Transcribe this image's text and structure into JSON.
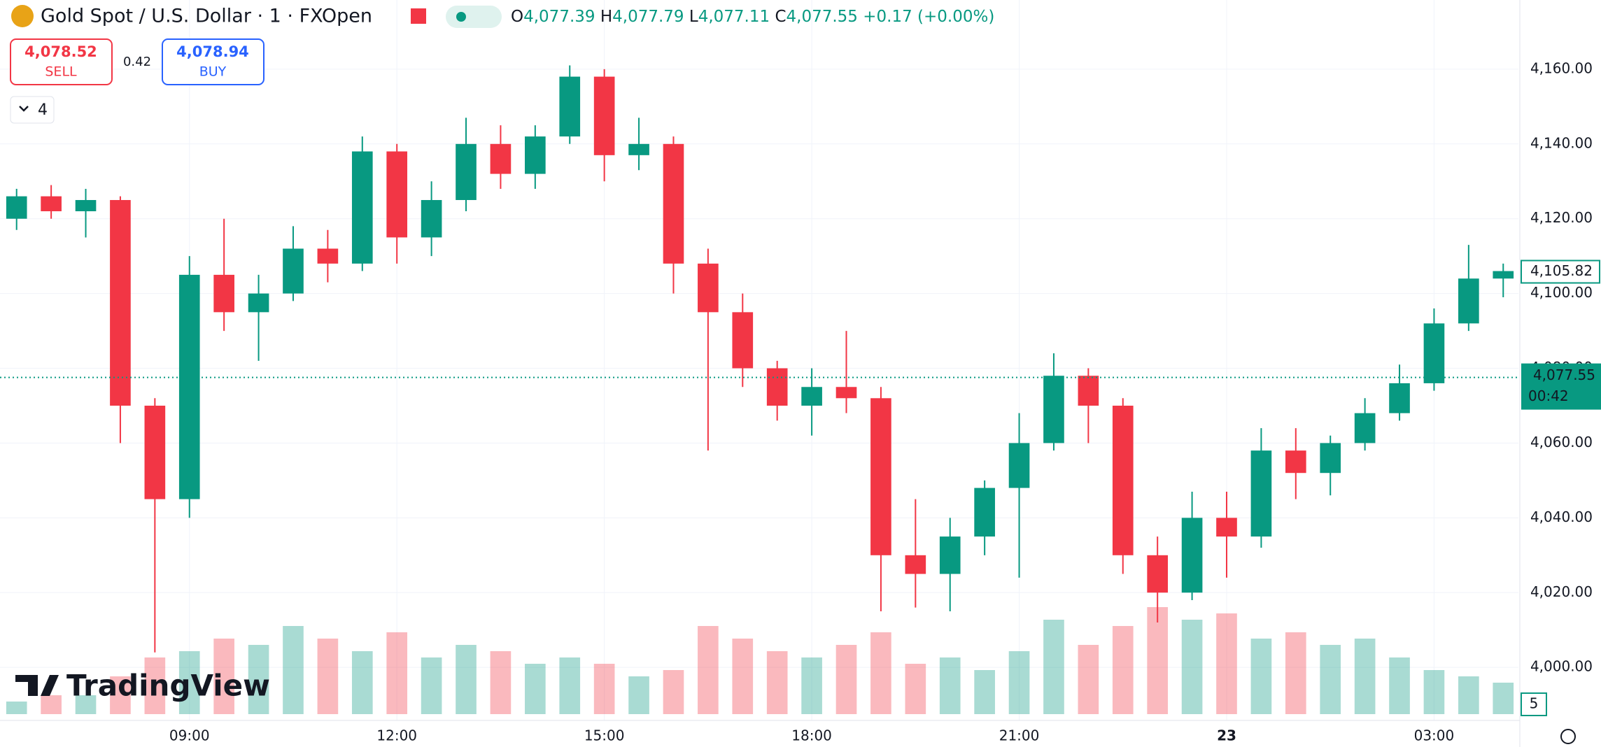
{
  "header": {
    "title": "Gold Spot / U.S. Dollar · 1 · FXOpen",
    "ohlc": [
      {
        "key": "O",
        "value": "4,077.39"
      },
      {
        "key": "H",
        "value": "4,077.79"
      },
      {
        "key": "L",
        "value": "4,077.11"
      },
      {
        "key": "C",
        "value": "4,077.55"
      }
    ],
    "change": "+0.17 (+0.00%)",
    "sell": {
      "price": "4,078.52",
      "label": "SELL"
    },
    "spread": "0.42",
    "buy": {
      "price": "4,078.94",
      "label": "BUY"
    },
    "indicators": "4",
    "watermark": "TradingView"
  },
  "chart_data": {
    "type": "candlestick",
    "up_color": "#089981",
    "down_color": "#f23645",
    "x": [
      6.5,
      7,
      7.5,
      8,
      8.5,
      9,
      9.5,
      10,
      10.5,
      11,
      11.5,
      12,
      12.5,
      13,
      13.5,
      14,
      14.5,
      15,
      15.5,
      16,
      16.5,
      17,
      17.5,
      18,
      18.5,
      19,
      19.5,
      20,
      20.5,
      21,
      21.5,
      22,
      22.5,
      23,
      23.5,
      24,
      24.5,
      25,
      25.5,
      26,
      26.5,
      27,
      27.5,
      28
    ],
    "open": [
      4120,
      4126,
      4122,
      4125,
      4070,
      4045,
      4105,
      4095,
      4100,
      4112,
      4108,
      4138,
      4115,
      4125,
      4140,
      4132,
      4142,
      4158,
      4137,
      4140,
      4108,
      4095,
      4080,
      4070,
      4075,
      4072,
      4030,
      4025,
      4035,
      4048,
      4060,
      4078,
      4070,
      4030,
      4020,
      4040,
      4035,
      4058,
      4052,
      4060,
      4068,
      4076,
      4092,
      4104
    ],
    "high": [
      4128,
      4129,
      4128,
      4126,
      4072,
      4110,
      4120,
      4105,
      4118,
      4117,
      4142,
      4140,
      4130,
      4147,
      4145,
      4145,
      4161,
      4160,
      4147,
      4142,
      4112,
      4100,
      4082,
      4080,
      4090,
      4075,
      4045,
      4040,
      4050,
      4068,
      4084,
      4080,
      4072,
      4035,
      4047,
      4047,
      4064,
      4064,
      4062,
      4072,
      4081,
      4096,
      4113,
      4108
    ],
    "low": [
      4117,
      4120,
      4115,
      4060,
      4004,
      4040,
      4090,
      4082,
      4098,
      4103,
      4106,
      4108,
      4110,
      4122,
      4128,
      4128,
      4140,
      4130,
      4133,
      4100,
      4058,
      4075,
      4066,
      4062,
      4068,
      4015,
      4016,
      4015,
      4030,
      4024,
      4058,
      4060,
      4025,
      4012,
      4018,
      4024,
      4032,
      4045,
      4046,
      4058,
      4066,
      4074,
      4090,
      4099
    ],
    "close": [
      4126,
      4122,
      4125,
      4070,
      4045,
      4105,
      4095,
      4100,
      4112,
      4108,
      4138,
      4115,
      4125,
      4140,
      4132,
      4142,
      4158,
      4137,
      4140,
      4108,
      4095,
      4080,
      4070,
      4075,
      4072,
      4030,
      4025,
      4035,
      4048,
      4060,
      4078,
      4070,
      4030,
      4020,
      4040,
      4035,
      4058,
      4052,
      4060,
      4068,
      4076,
      4092,
      4104,
      4106
    ],
    "volume": [
      2,
      3,
      3,
      6,
      9,
      10,
      12,
      11,
      14,
      12,
      10,
      13,
      9,
      11,
      10,
      8,
      9,
      8,
      6,
      7,
      14,
      12,
      10,
      9,
      11,
      13,
      8,
      9,
      7,
      10,
      15,
      11,
      14,
      17,
      15,
      16,
      12,
      13,
      11,
      12,
      9,
      7,
      6,
      5
    ],
    "volume_label": "5",
    "xlim": [
      6.26,
      28.22
    ],
    "xticks": [
      {
        "value": 9,
        "label": "09:00"
      },
      {
        "value": 12,
        "label": "12:00"
      },
      {
        "value": 15,
        "label": "15:00"
      },
      {
        "value": 18,
        "label": "18:00"
      },
      {
        "value": 21,
        "label": "21:00"
      },
      {
        "value": 24,
        "label": "23"
      },
      {
        "value": 27,
        "label": "03:00"
      }
    ],
    "ylim": [
      3987.5,
      4178.5
    ],
    "yticks": [
      {
        "value": 4000,
        "label": "4,000.00"
      },
      {
        "value": 4020,
        "label": "4,020.00"
      },
      {
        "value": 4040,
        "label": "4,040.00"
      },
      {
        "value": 4060,
        "label": "4,060.00"
      },
      {
        "value": 4080,
        "label": "4,080.00"
      },
      {
        "value": 4100,
        "label": "4,100.00"
      },
      {
        "value": 4120,
        "label": "4,120.00"
      },
      {
        "value": 4140,
        "label": "4,140.00"
      },
      {
        "value": 4160,
        "label": "4,160.00"
      }
    ],
    "grid": true,
    "last_price": {
      "value": 4077.55,
      "label": "4,077.55"
    },
    "countdown": "00:42",
    "indicator_price": {
      "value": 4105.82,
      "label": "4,105.82"
    }
  }
}
